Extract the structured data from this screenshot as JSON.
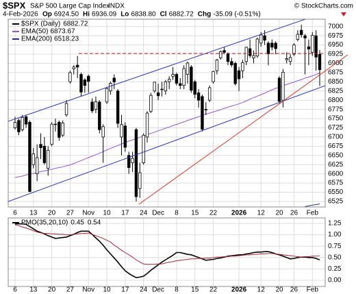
{
  "header": {
    "symbol": "$SPX",
    "name": "S&P 500 Large Cap Index",
    "exchange": "INDX",
    "copyright": "© StockCharts.com",
    "date": "4-Feb-2026",
    "quote": [
      {
        "label": "Op",
        "value": "6924.50"
      },
      {
        "label": "Hi",
        "value": "6936.09"
      },
      {
        "label": "Lo",
        "value": "6838.80"
      },
      {
        "label": "Cl",
        "value": "6882.72"
      },
      {
        "label": "Chg",
        "value": "-35.09 (-0.51%)"
      }
    ]
  },
  "chart_data": [
    {
      "type": "candlestick",
      "price_label": "$SPX (Daily)",
      "categories": [
        "6",
        null,
        null,
        null,
        null,
        "13",
        null,
        null,
        null,
        null,
        "20",
        null,
        null,
        null,
        null,
        "27",
        null,
        null,
        null,
        null,
        "Nov",
        null,
        null,
        null,
        null,
        "10",
        null,
        null,
        null,
        null,
        "17",
        null,
        null,
        null,
        null,
        "24",
        null,
        null,
        null,
        "Dec",
        null,
        null,
        null,
        null,
        "8",
        null,
        null,
        null,
        null,
        "15",
        null,
        null,
        null,
        null,
        "22",
        null,
        null,
        null,
        null,
        null,
        null,
        "2026",
        null,
        null,
        null,
        null,
        null,
        "12",
        null,
        null,
        null,
        null,
        "20",
        null,
        null,
        null,
        "26",
        null,
        null,
        null,
        null,
        "Feb",
        null,
        null
      ],
      "ohlc": [
        [
          6725,
          6755,
          6720,
          6740
        ],
        [
          6745,
          6750,
          6705,
          6714
        ],
        [
          6720,
          6760,
          6715,
          6753
        ],
        [
          6755,
          6760,
          6725,
          6735
        ],
        [
          6740,
          6745,
          6550,
          6552
        ],
        [
          6625,
          6670,
          6615,
          6654
        ],
        [
          6600,
          6680,
          6580,
          6644
        ],
        [
          6680,
          6710,
          6640,
          6671
        ],
        [
          6675,
          6700,
          6625,
          6630
        ],
        [
          6615,
          6675,
          6595,
          6664
        ],
        [
          6680,
          6740,
          6675,
          6735
        ],
        [
          6735,
          6750,
          6715,
          6735
        ],
        [
          6740,
          6745,
          6690,
          6699
        ],
        [
          6705,
          6745,
          6700,
          6738
        ],
        [
          6760,
          6800,
          6755,
          6791
        ],
        [
          6850,
          6880,
          6845,
          6875
        ],
        [
          6885,
          6895,
          6870,
          6890
        ],
        [
          6895,
          6920,
          6860,
          6890
        ],
        [
          6870,
          6875,
          6810,
          6822
        ],
        [
          6855,
          6860,
          6820,
          6840
        ],
        [
          6865,
          6870,
          6820,
          6851
        ],
        [
          6795,
          6805,
          6765,
          6771
        ],
        [
          6775,
          6810,
          6765,
          6796
        ],
        [
          6795,
          6800,
          6710,
          6720
        ],
        [
          6700,
          6735,
          6630,
          6728
        ],
        [
          6795,
          6835,
          6790,
          6832
        ],
        [
          6825,
          6850,
          6815,
          6846
        ],
        [
          6860,
          6870,
          6830,
          6850
        ],
        [
          6825,
          6830,
          6725,
          6737
        ],
        [
          6700,
          6760,
          6650,
          6734
        ],
        [
          6730,
          6740,
          6660,
          6672
        ],
        [
          6650,
          6660,
          6600,
          6617
        ],
        [
          6630,
          6660,
          6605,
          6642
        ],
        [
          6720,
          6725,
          6525,
          6538
        ],
        [
          6560,
          6630,
          6535,
          6603
        ],
        [
          6630,
          6710,
          6625,
          6705
        ],
        [
          6700,
          6770,
          6685,
          6765
        ],
        [
          6770,
          6820,
          6765,
          6813
        ],
        [
          6825,
          6850,
          6820,
          6849
        ],
        [
          6820,
          6845,
          6800,
          6812
        ],
        [
          6830,
          6850,
          6810,
          6829
        ],
        [
          6825,
          6855,
          6815,
          6850
        ],
        [
          6850,
          6865,
          6830,
          6857
        ],
        [
          6865,
          6890,
          6855,
          6870
        ],
        [
          6870,
          6875,
          6840,
          6846
        ],
        [
          6845,
          6860,
          6830,
          6840
        ],
        [
          6840,
          6895,
          6830,
          6886
        ],
        [
          6870,
          6905,
          6845,
          6901
        ],
        [
          6890,
          6895,
          6820,
          6827
        ],
        [
          6850,
          6855,
          6805,
          6816
        ],
        [
          6820,
          6830,
          6780,
          6800
        ],
        [
          6810,
          6815,
          6715,
          6721
        ],
        [
          6775,
          6795,
          6760,
          6775
        ],
        [
          6800,
          6840,
          6795,
          6834
        ],
        [
          6850,
          6880,
          6845,
          6878
        ],
        [
          6880,
          6912,
          6870,
          6909
        ],
        [
          6915,
          6935,
          6910,
          6932
        ],
        [
          6935,
          6945,
          6925,
          6930
        ],
        [
          6925,
          6930,
          6895,
          6905
        ],
        [
          6905,
          6915,
          6890,
          6896
        ],
        [
          6900,
          6905,
          6840,
          6845
        ],
        [
          6880,
          6890,
          6825,
          6858
        ],
        [
          6880,
          6910,
          6860,
          6902
        ],
        [
          6905,
          6945,
          6895,
          6944
        ],
        [
          6940,
          6965,
          6915,
          6921
        ],
        [
          6915,
          6935,
          6900,
          6921
        ],
        [
          6920,
          6970,
          6915,
          6966
        ],
        [
          6955,
          6985,
          6945,
          6977
        ],
        [
          6975,
          6990,
          6950,
          6963
        ],
        [
          6955,
          6960,
          6895,
          6926
        ],
        [
          6955,
          6965,
          6935,
          6944
        ],
        [
          6955,
          6960,
          6925,
          6940
        ],
        [
          6860,
          6865,
          6790,
          6797
        ],
        [
          6800,
          6885,
          6780,
          6876
        ],
        [
          6910,
          6930,
          6900,
          6913
        ],
        [
          6905,
          6925,
          6895,
          6916
        ],
        [
          6925,
          6955,
          6920,
          6950
        ],
        [
          6965,
          6990,
          6960,
          6979
        ],
        [
          6990,
          7005,
          6970,
          6978
        ],
        [
          6975,
          6980,
          6870,
          6969
        ],
        [
          6945,
          6965,
          6895,
          6939
        ],
        [
          6930,
          6985,
          6920,
          6976
        ],
        [
          6975,
          6990,
          6880,
          6917
        ],
        [
          6924.5,
          6936.09,
          6838.8,
          6882.72
        ]
      ],
      "series": [
        {
          "name": "EMA(50)",
          "color": "#9b4fd6",
          "values": [
            6590,
            6592,
            6594,
            6597,
            6599,
            6601,
            6603,
            6606,
            6608,
            6610,
            6612,
            6615,
            6617,
            6619,
            6622,
            6624,
            6628,
            6632,
            6636,
            6640,
            6644,
            6648,
            6652,
            6656,
            6660,
            6665,
            6669,
            6673,
            6677,
            6681,
            6685,
            6689,
            6692,
            6696,
            6699,
            6703,
            6706,
            6710,
            6713,
            6717,
            6720,
            6724,
            6727,
            6731,
            6734,
            6738,
            6741,
            6745,
            6748,
            6752,
            6755,
            6759,
            6762,
            6765,
            6768,
            6771,
            6774,
            6778,
            6781,
            6784,
            6787,
            6790,
            6794,
            6798,
            6803,
            6807,
            6811,
            6815,
            6819,
            6824,
            6828,
            6832,
            6836,
            6839,
            6843,
            6846,
            6849,
            6853,
            6856,
            6860,
            6863,
            6866,
            6870,
            6873.67
          ]
        },
        {
          "name": "EMA(200)",
          "color": "#1c2a8a",
          "values": [
            null,
            null,
            null,
            null,
            null,
            null,
            null,
            null,
            null,
            null,
            null,
            null,
            null,
            null,
            null,
            null,
            null,
            null,
            null,
            null,
            null,
            null,
            null,
            null,
            null,
            null,
            null,
            null,
            null,
            null,
            null,
            null,
            null,
            null,
            null,
            null,
            null,
            null,
            null,
            null,
            null,
            null,
            null,
            null,
            null,
            null,
            null,
            null,
            null,
            null,
            null,
            null,
            null,
            null,
            null,
            null,
            null,
            null,
            null,
            null,
            null,
            null,
            null,
            null,
            null,
            null,
            null,
            null,
            null,
            null,
            null,
            null,
            null,
            null,
            null,
            null,
            null,
            null,
            null,
            6511,
            6513,
            6515,
            6516.5,
            6518.23
          ]
        }
      ],
      "ylim": [
        6510,
        7020
      ],
      "yticks": [
        6525,
        6550,
        6575,
        6600,
        6625,
        6650,
        6675,
        6700,
        6725,
        6750,
        6775,
        6800,
        6825,
        6850,
        6875,
        6900,
        6925,
        6950,
        6975,
        7000
      ],
      "grid": true
    },
    {
      "type": "line",
      "categories": [
        "6",
        null,
        null,
        null,
        null,
        "13",
        null,
        null,
        null,
        null,
        "20",
        null,
        null,
        null,
        null,
        "27",
        null,
        null,
        null,
        null,
        "Nov",
        null,
        null,
        null,
        null,
        "10",
        null,
        null,
        null,
        null,
        "17",
        null,
        null,
        null,
        null,
        "24",
        null,
        null,
        null,
        "Dec",
        null,
        null,
        null,
        null,
        "8",
        null,
        null,
        null,
        null,
        "15",
        null,
        null,
        null,
        null,
        "22",
        null,
        null,
        null,
        null,
        null,
        null,
        "2026",
        null,
        null,
        null,
        null,
        null,
        "12",
        null,
        null,
        null,
        null,
        "20",
        null,
        null,
        null,
        "26",
        null,
        null,
        null,
        null,
        "Feb",
        null,
        null
      ],
      "series": [
        {
          "name": "PMO(35,20,10)",
          "color": "#000000",
          "values": [
            1.24,
            1.24,
            1.24,
            1.23,
            1.18,
            1.13,
            1.08,
            1.05,
            1.02,
            0.98,
            0.95,
            0.92,
            0.93,
            0.94,
            0.95,
            0.98,
            1.01,
            1.05,
            1.08,
            1.08,
            1.08,
            1.01,
            0.93,
            0.86,
            0.77,
            0.67,
            0.58,
            0.49,
            0.4,
            0.3,
            0.21,
            0.15,
            0.1,
            0.06,
            0.07,
            0.09,
            0.15,
            0.22,
            0.28,
            0.34,
            0.4,
            0.45,
            0.5,
            0.55,
            0.61,
            0.61,
            0.59,
            0.57,
            0.56,
            0.53,
            0.5,
            0.47,
            0.44,
            0.45,
            0.46,
            0.48,
            0.49,
            0.51,
            0.53,
            0.54,
            0.55,
            0.56,
            0.56,
            0.58,
            0.59,
            0.61,
            0.62,
            0.62,
            0.63,
            0.63,
            0.61,
            0.58,
            0.56,
            0.53,
            0.5,
            0.47,
            0.48,
            0.5,
            0.51,
            0.51,
            0.5,
            0.5,
            0.48,
            0.45
          ]
        },
        {
          "color": "#b0203a",
          "values": [
            1.22,
            1.2,
            1.17,
            1.15,
            1.12,
            1.09,
            1.06,
            1.04,
            1.03,
            1.03,
            1.02,
            1.02,
            1.01,
            1.01,
            1.0,
            1.0,
            1.01,
            1.02,
            1.03,
            1.03,
            1.04,
            1.01,
            0.98,
            0.95,
            0.92,
            0.88,
            0.84,
            0.77,
            0.72,
            0.66,
            0.61,
            0.56,
            0.51,
            0.45,
            0.4,
            0.36,
            0.35,
            0.35,
            0.35,
            0.36,
            0.36,
            0.38,
            0.4,
            0.41,
            0.43,
            0.44,
            0.45,
            0.46,
            0.47,
            0.47,
            0.48,
            0.48,
            0.49,
            0.49,
            0.5,
            0.51,
            0.51,
            0.52,
            0.52,
            0.53,
            0.53,
            0.54,
            0.55,
            0.56,
            0.56,
            0.57,
            0.57,
            0.58,
            0.58,
            0.59,
            0.59,
            0.58,
            0.57,
            0.56,
            0.55,
            0.54,
            0.53,
            0.52,
            0.51,
            0.52,
            0.52,
            0.53,
            0.53,
            0.54
          ]
        }
      ],
      "ylim": [
        -0.135,
        1.37
      ],
      "yticks": [
        {
          "value": 0,
          "label": "0.00"
        },
        {
          "value": 0.25,
          "label": "0.25"
        },
        {
          "value": 0.5,
          "label": "0.50"
        },
        {
          "value": 0.75,
          "label": "0.75"
        },
        {
          "value": 1,
          "label": "1.00"
        },
        {
          "value": 1.25,
          "label": "1.25"
        }
      ],
      "grid": true
    }
  ]
}
